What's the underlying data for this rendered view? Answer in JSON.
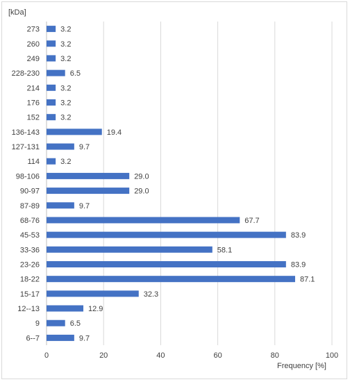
{
  "chart_data": {
    "type": "bar",
    "orientation": "horizontal",
    "ylabel": "[kDa]",
    "xlabel": "Frequency [%]",
    "xlim": [
      0,
      100
    ],
    "xticks": [
      0,
      20,
      40,
      60,
      80,
      100
    ],
    "grid": true,
    "bar_color": "#4472c4",
    "categories": [
      "273",
      "260",
      "249",
      "228-230",
      "214",
      "176",
      "152",
      "136-143",
      "127-131",
      "114",
      "98-106",
      "90-97",
      "87-89",
      "68-76",
      "45-53",
      "33-36",
      "23-26",
      "18-22",
      "15-17",
      "12--13",
      "9",
      "6--7"
    ],
    "values": [
      3.2,
      3.2,
      3.2,
      6.5,
      3.2,
      3.2,
      3.2,
      19.4,
      9.7,
      3.2,
      29.0,
      29.0,
      9.7,
      67.7,
      83.9,
      58.1,
      83.9,
      87.1,
      32.3,
      12.9,
      6.5,
      9.7
    ],
    "value_labels": [
      "3.2",
      "3.2",
      "3.2",
      "6.5",
      "3.2",
      "3.2",
      "3.2",
      "19.4",
      "9.7",
      "3.2",
      "29.0",
      "29.0",
      "9.7",
      "67.7",
      "83.9",
      "58.1",
      "83.9",
      "87.1",
      "32.3",
      "12.9",
      "6.5",
      "9.7"
    ]
  }
}
